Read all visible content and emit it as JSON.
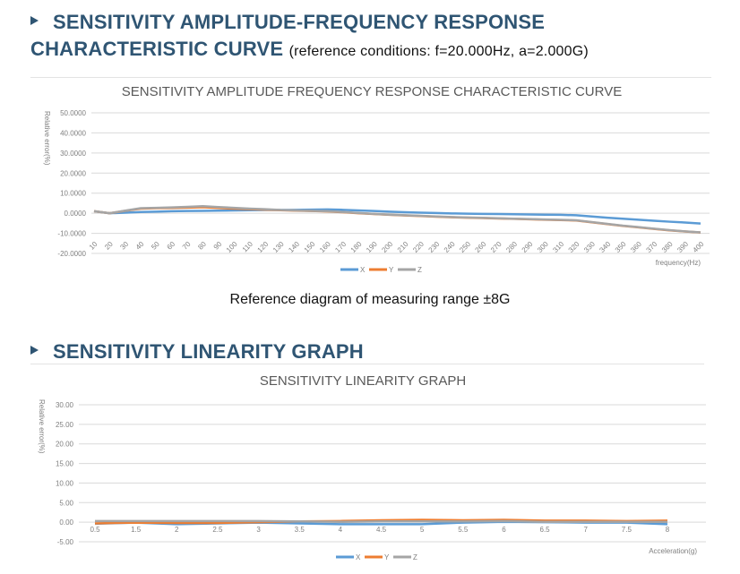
{
  "heading1": {
    "line1": "SENSITIVITY AMPLITUDE-FREQUENCY RESPONSE",
    "line2": "CHARACTERISTIC CURVE",
    "reference": "(reference conditions: f=20.000Hz,  a=2.000G)"
  },
  "caption1": "Reference diagram of measuring range ±8G",
  "heading2": {
    "text": "SENSITIVITY LINEARITY GRAPH"
  },
  "chart_data": [
    {
      "type": "line",
      "title": "SENSITIVITY AMPLITUDE FREQUENCY RESPONSE CHARACTERISTIC CURVE",
      "xlabel": "frequency(Hz)",
      "ylabel": "Relative error(%)",
      "ylim": [
        -20,
        50
      ],
      "yticks": [
        -20,
        -10,
        0,
        10,
        20,
        30,
        40,
        50
      ],
      "ytick_labels": [
        "-20.0000",
        "-10.0000",
        "0.0000",
        "10.0000",
        "20.0000",
        "30.0000",
        "40.0000",
        "50.0000"
      ],
      "legend": "bottom",
      "grid": true,
      "categories": [
        "10",
        "20",
        "30",
        "40",
        "50",
        "60",
        "70",
        "80",
        "90",
        "100",
        "110",
        "120",
        "130",
        "140",
        "150",
        "160",
        "170",
        "180",
        "190",
        "200",
        "210",
        "220",
        "230",
        "240",
        "250",
        "260",
        "270",
        "280",
        "290",
        "300",
        "310",
        "320",
        "330",
        "340",
        "350",
        "360",
        "370",
        "380",
        "390",
        "400"
      ],
      "series": [
        {
          "name": "X",
          "color": "#5b9bd5",
          "values": [
            1,
            0,
            0.3,
            0.6,
            0.8,
            1,
            1.1,
            1.2,
            1.3,
            1.4,
            1.5,
            1.6,
            1.6,
            1.7,
            1.8,
            1.9,
            1.7,
            1.4,
            1.1,
            0.8,
            0.5,
            0.3,
            0.1,
            -0.1,
            -0.2,
            -0.3,
            -0.4,
            -0.5,
            -0.6,
            -0.7,
            -0.8,
            -1.0,
            -1.6,
            -2.2,
            -2.7,
            -3.2,
            -3.7,
            -4.2,
            -4.6,
            -5.1
          ]
        },
        {
          "name": "Y",
          "color": "#ed7d31",
          "values": [
            1,
            0,
            1.2,
            2.3,
            2.5,
            2.6,
            2.8,
            3,
            2.6,
            2.3,
            2,
            1.8,
            1.5,
            1.3,
            1.1,
            0.9,
            0.5,
            0,
            -0.4,
            -0.8,
            -1.1,
            -1.4,
            -1.7,
            -2,
            -2.2,
            -2.4,
            -2.6,
            -2.8,
            -3,
            -3.2,
            -3.4,
            -3.6,
            -4.5,
            -5.4,
            -6.3,
            -7,
            -7.8,
            -8.5,
            -9.1,
            -9.6
          ]
        },
        {
          "name": "Z",
          "color": "#a5a5a5",
          "values": [
            1,
            0,
            1.3,
            2.5,
            2.7,
            2.9,
            3.2,
            3.5,
            3.1,
            2.7,
            2.3,
            2,
            1.6,
            1.4,
            1.2,
            1,
            0.6,
            0.1,
            -0.3,
            -0.7,
            -1,
            -1.3,
            -1.6,
            -1.9,
            -2.1,
            -2.3,
            -2.5,
            -2.7,
            -2.9,
            -3.1,
            -3.3,
            -3.5,
            -4.4,
            -5.3,
            -6.2,
            -6.9,
            -7.7,
            -8.4,
            -9,
            -9.5
          ]
        }
      ]
    },
    {
      "type": "line",
      "title": "SENSITIVITY LINEARITY GRAPH",
      "xlabel": "Acceleration(g)",
      "ylabel": "Relative error(%)",
      "ylim": [
        -5,
        30
      ],
      "yticks": [
        -5,
        0,
        5,
        10,
        15,
        20,
        25,
        30
      ],
      "ytick_labels": [
        "-5.00",
        "0.00",
        "5.00",
        "10.00",
        "15.00",
        "20.00",
        "25.00",
        "30.00"
      ],
      "legend": "bottom",
      "grid": true,
      "categories": [
        "0.5",
        "1.5",
        "2",
        "2.5",
        "3",
        "3.5",
        "4",
        "4.5",
        "5",
        "5.5",
        "6",
        "6.5",
        "7",
        "7.5",
        "8"
      ],
      "series": [
        {
          "name": "X",
          "color": "#5b9bd5",
          "values": [
            -0.4,
            -0.1,
            -0.5,
            -0.3,
            -0.1,
            -0.3,
            -0.5,
            -0.5,
            -0.5,
            -0.1,
            0.1,
            0,
            -0.1,
            -0.1,
            -0.5
          ]
        },
        {
          "name": "Y",
          "color": "#ed7d31",
          "values": [
            -0.3,
            -0.1,
            -0.2,
            -0.2,
            0,
            0.2,
            0.3,
            0.5,
            0.6,
            0.5,
            0.6,
            0.4,
            0.4,
            0.3,
            0.4
          ]
        },
        {
          "name": "Z",
          "color": "#a5a5a5",
          "values": [
            0.3,
            0.3,
            0.3,
            0.3,
            0.3,
            0.2,
            0.1,
            0.2,
            0.2,
            0.2,
            0.3,
            0.1,
            0.1,
            0.1,
            0.1
          ]
        }
      ]
    }
  ]
}
